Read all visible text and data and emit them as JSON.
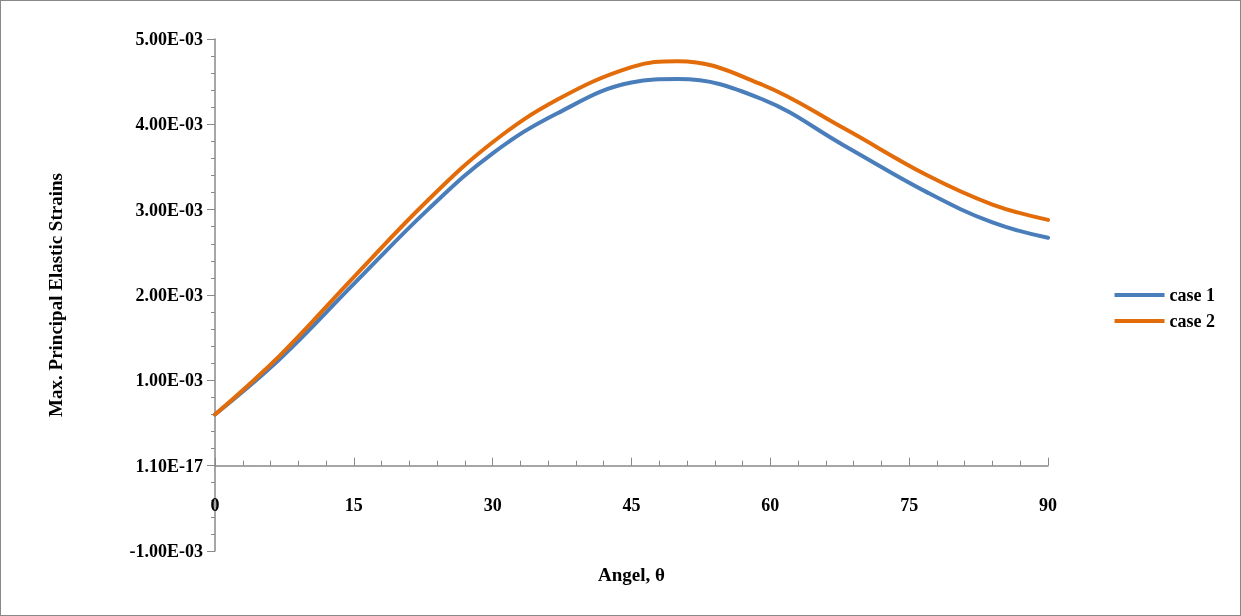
{
  "chart_data": {
    "type": "line",
    "xlabel": "Angel, θ",
    "ylabel": "Max. Principal Elastic Strains",
    "x": [
      0,
      7,
      15,
      23,
      30,
      37,
      45,
      50,
      59,
      68,
      77,
      84,
      90
    ],
    "series": [
      {
        "name": "case 1",
        "color": "#4a7ebb",
        "values": [
          0.0006,
          0.00125,
          0.00213,
          0.003,
          0.00366,
          0.00413,
          0.00449,
          0.00453,
          0.0043,
          0.00375,
          0.0032,
          0.00285,
          0.00267
        ]
      },
      {
        "name": "case 2",
        "color": "#e36c0a",
        "values": [
          0.0006,
          0.00129,
          0.00221,
          0.00311,
          0.00379,
          0.00429,
          0.00467,
          0.00474,
          0.00447,
          0.00395,
          0.0034,
          0.00306,
          0.00288
        ]
      }
    ],
    "xlim": [
      0,
      90
    ],
    "xticks": [
      0,
      15,
      30,
      45,
      60,
      75,
      90
    ],
    "ylim": [
      -0.001,
      0.005
    ],
    "yticks": [
      {
        "value": -0.001,
        "label": "-1.00E-03"
      },
      {
        "value": 0,
        "label": "1.10E-17"
      },
      {
        "value": 0.001,
        "label": "1.00E-03"
      },
      {
        "value": 0.002,
        "label": "2.00E-03"
      },
      {
        "value": 0.003,
        "label": "3.00E-03"
      },
      {
        "value": 0.004,
        "label": "4.00E-03"
      },
      {
        "value": 0.005,
        "label": "5.00E-03"
      }
    ],
    "grid": false,
    "legend": "right",
    "marker": "none",
    "line_style": "solid"
  }
}
